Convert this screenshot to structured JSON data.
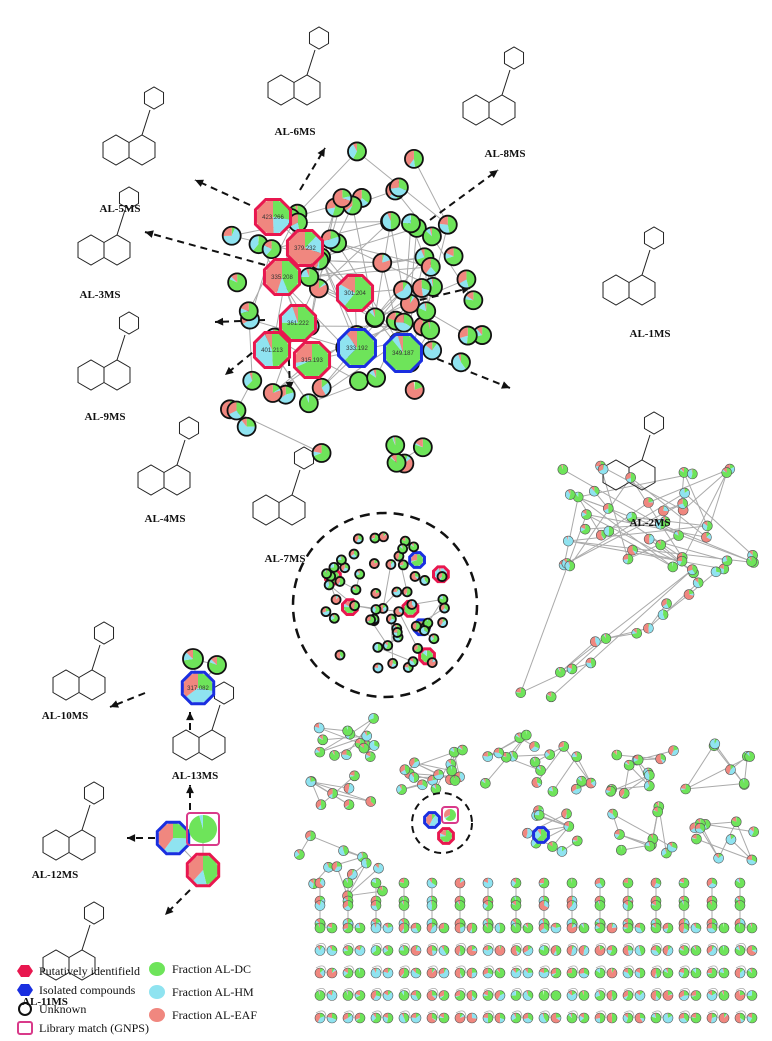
{
  "colors": {
    "fraction_dc": "#6ee45a",
    "fraction_hm": "#8fe3f0",
    "fraction_eaf": "#f0877f",
    "putative_border": "#e8174f",
    "isolated_border": "#1a2fe0",
    "unknown_border": "#111111",
    "library_border": "#d93a8a"
  },
  "compounds": [
    "AL-1MS",
    "AL-2MS",
    "AL-3MS",
    "AL-4MS",
    "AL-5MS",
    "AL-6MS",
    "AL-7MS",
    "AL-8MS",
    "AL-9MS",
    "AL-10MS",
    "AL-11MS",
    "AL-12MS",
    "AL-13MS"
  ],
  "main_cluster_nodes": [
    {
      "label": "423.266",
      "type": "putative"
    },
    {
      "label": "379.232",
      "type": "putative"
    },
    {
      "label": "335.208",
      "type": "putative"
    },
    {
      "label": "301.204",
      "type": "putative"
    },
    {
      "label": "361.222",
      "type": "putative"
    },
    {
      "label": "401.213",
      "type": "putative"
    },
    {
      "label": "315.193",
      "type": "putative"
    },
    {
      "label": "333.192",
      "type": "isolated"
    },
    {
      "label": "349.187",
      "type": "isolated"
    }
  ],
  "legend": [
    {
      "label": "Putatively identifield",
      "icon": "red-hexagon"
    },
    {
      "label": "Isolated compounds",
      "icon": "blue-hexagon"
    },
    {
      "label": "Unknown",
      "icon": "black-circle"
    },
    {
      "label": "Library match (GNPS)",
      "icon": "pink-square"
    },
    {
      "label": "Fraction AL-DC",
      "icon": "green-circle"
    },
    {
      "label": "Fraction AL-HM",
      "icon": "cyan-circle"
    },
    {
      "label": "Fraction AL-EAF",
      "icon": "salmon-circle"
    }
  ]
}
